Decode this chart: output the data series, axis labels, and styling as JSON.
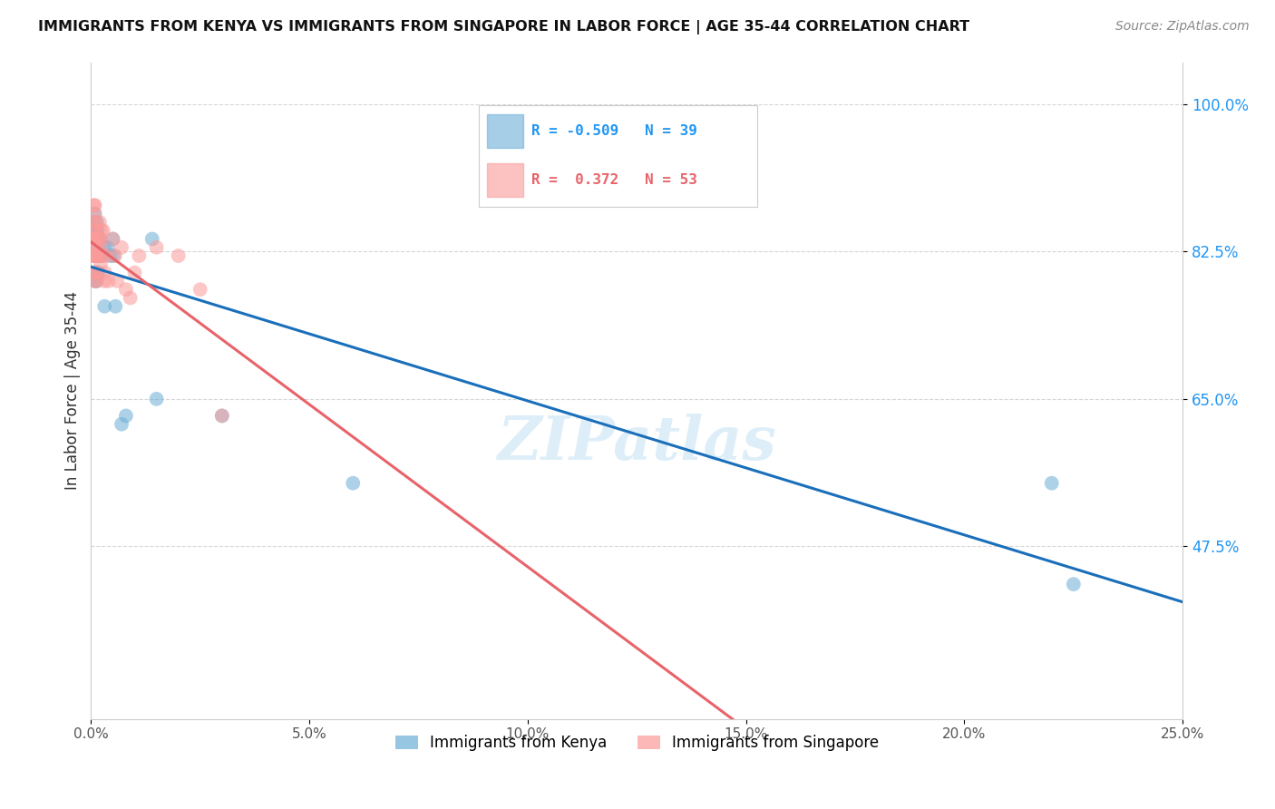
{
  "title": "IMMIGRANTS FROM KENYA VS IMMIGRANTS FROM SINGAPORE IN LABOR FORCE | AGE 35-44 CORRELATION CHART",
  "source": "Source: ZipAtlas.com",
  "ylabel": "In Labor Force | Age 35-44",
  "xlim": [
    0.0,
    25.0
  ],
  "ylim": [
    27.0,
    105.0
  ],
  "yticks": [
    47.5,
    65.0,
    82.5,
    100.0
  ],
  "ytick_labels": [
    "47.5%",
    "65.0%",
    "82.5%",
    "100.0%"
  ],
  "xticks": [
    0.0,
    5.0,
    10.0,
    15.0,
    20.0,
    25.0
  ],
  "xtick_labels": [
    "0.0%",
    "5.0%",
    "10.0%",
    "15.0%",
    "20.0%",
    "25.0%"
  ],
  "kenya_color": "#6baed6",
  "singapore_color": "#fb9a99",
  "kenya_R": -0.509,
  "kenya_N": 39,
  "singapore_R": 0.372,
  "singapore_N": 53,
  "kenya_line_color": "#1a6fba",
  "singapore_line_color": "#e8636a",
  "background_color": "#ffffff",
  "grid_color": "#cccccc",
  "kenya_x": [
    0.09,
    0.09,
    0.09,
    0.09,
    0.09,
    0.1,
    0.1,
    0.1,
    0.11,
    0.11,
    0.12,
    0.12,
    0.13,
    0.13,
    0.14,
    0.14,
    0.15,
    0.15,
    0.16,
    0.16,
    0.17,
    0.2,
    0.2,
    0.22,
    0.3,
    0.31,
    0.38,
    0.44,
    0.5,
    0.52,
    0.56,
    0.7,
    0.8,
    1.4,
    1.5,
    3.0,
    6.0,
    22.0,
    22.5
  ],
  "kenya_y": [
    82,
    83,
    84,
    85,
    87,
    79,
    82,
    86,
    80,
    84,
    82,
    85,
    79,
    82,
    84,
    86,
    80,
    85,
    82,
    84,
    80,
    82,
    84,
    82,
    83,
    76,
    83,
    82,
    84,
    82,
    76,
    62,
    63,
    84,
    65,
    63,
    55,
    55,
    43
  ],
  "singapore_x": [
    0.07,
    0.07,
    0.07,
    0.07,
    0.08,
    0.08,
    0.08,
    0.08,
    0.09,
    0.09,
    0.09,
    0.09,
    0.09,
    0.1,
    0.1,
    0.1,
    0.1,
    0.11,
    0.11,
    0.12,
    0.12,
    0.13,
    0.13,
    0.14,
    0.14,
    0.15,
    0.16,
    0.17,
    0.18,
    0.19,
    0.2,
    0.21,
    0.22,
    0.23,
    0.24,
    0.25,
    0.28,
    0.3,
    0.32,
    0.35,
    0.4,
    0.5,
    0.55,
    0.6,
    0.7,
    0.8,
    0.9,
    1.0,
    1.1,
    1.5,
    2.0,
    2.5,
    3.0
  ],
  "singapore_y": [
    82,
    84,
    86,
    88,
    79,
    82,
    85,
    87,
    80,
    82,
    83,
    85,
    88,
    80,
    82,
    84,
    86,
    82,
    84,
    79,
    82,
    80,
    83,
    82,
    84,
    82,
    84,
    82,
    84,
    82,
    86,
    84,
    81,
    83,
    85,
    82,
    85,
    79,
    80,
    82,
    79,
    84,
    82,
    79,
    83,
    78,
    77,
    80,
    82,
    83,
    82,
    78,
    63
  ]
}
